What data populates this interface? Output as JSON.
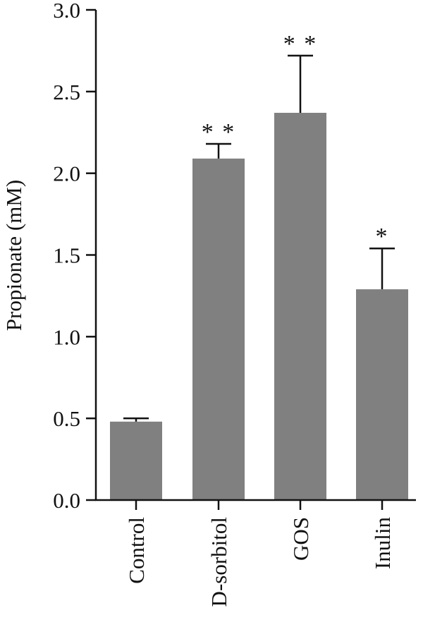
{
  "chart_data": {
    "type": "bar",
    "title": "",
    "xlabel": "",
    "ylabel": "Propionate (mM)",
    "ylim": [
      0,
      3.0
    ],
    "yticks": [
      0.0,
      0.5,
      1.0,
      1.5,
      2.0,
      2.5,
      3.0
    ],
    "ytick_labels": [
      "0.0",
      "0.5",
      "1.0",
      "1.5",
      "2.0",
      "2.5",
      "3.0"
    ],
    "categories": [
      "Control",
      "D-sorbitol",
      "GOS",
      "Inulin"
    ],
    "values": [
      0.48,
      2.09,
      2.37,
      1.29
    ],
    "error_upper": [
      0.02,
      0.09,
      0.35,
      0.25
    ],
    "significance": [
      "",
      "* *",
      "* *",
      "*"
    ],
    "bar_color": "#808080",
    "axis_color": "#111111",
    "grid": false
  }
}
